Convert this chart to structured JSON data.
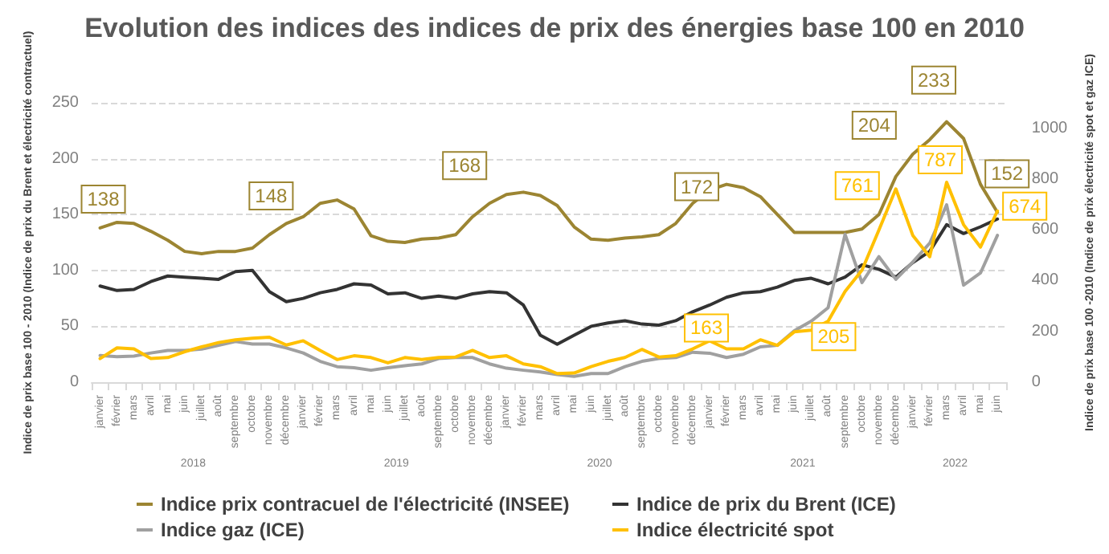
{
  "chart_data": {
    "type": "line",
    "title": "Evolution des indices des indices de prix des énergies base 100 en 2010",
    "ylabel": "Indice de prix base 100 - 2010 (Indice de prix du Brent et électricité contractuel)",
    "y2label": "Indice de prix base 100 -2010 (Indice de prix électricité spot et gaz ICE)",
    "categories": [
      "janvier",
      "février",
      "mars",
      "avril",
      "mai",
      "juin",
      "juillet",
      "août",
      "septembre",
      "octobre",
      "novembre",
      "décembre",
      "janvier",
      "février",
      "mars",
      "avril",
      "mai",
      "juin",
      "juillet",
      "août",
      "septembre",
      "octobre",
      "novembre",
      "décembre",
      "janvier",
      "février",
      "mars",
      "avril",
      "mai",
      "juin",
      "juillet",
      "août",
      "septembre",
      "octobre",
      "novembre",
      "décembre",
      "janvier",
      "février",
      "mars",
      "avril",
      "mai",
      "juin",
      "juillet",
      "août",
      "septembre",
      "octobre",
      "novembre",
      "décembre",
      "janvier",
      "février",
      "mars",
      "avril",
      "mai",
      "juin"
    ],
    "annotations": [
      "2018",
      "2019",
      "2020",
      "2021",
      "2022"
    ],
    "series": [
      {
        "name": "Indice prix contracuel de l'électricité (INSEE)",
        "color": "#9c8532",
        "values": [
          138,
          143,
          142,
          135,
          127,
          117,
          115,
          117,
          117,
          120,
          132,
          142,
          148,
          160,
          163,
          155,
          131,
          126,
          125,
          128,
          129,
          132,
          148,
          160,
          168,
          170,
          167,
          158,
          139,
          128,
          127,
          129,
          130,
          132,
          142,
          160,
          172,
          177,
          174,
          166,
          150,
          134,
          134,
          134,
          134,
          137,
          150,
          184,
          204,
          217,
          233,
          218,
          177,
          152
        ],
        "value_labels": [
          "138",
          null,
          null,
          null,
          null,
          null,
          null,
          null,
          null,
          null,
          null,
          null,
          "148",
          null,
          null,
          null,
          null,
          null,
          null,
          null,
          null,
          null,
          null,
          null,
          "168",
          null,
          null,
          null,
          null,
          null,
          null,
          null,
          null,
          null,
          null,
          null,
          "172",
          null,
          null,
          null,
          null,
          null,
          null,
          null,
          null,
          null,
          null,
          null,
          "204",
          null,
          "233",
          null,
          null,
          "152"
        ]
      },
      {
        "name": "Indice de prix du Brent (ICE)",
        "color": "#333333",
        "values": [
          86,
          82,
          83,
          90,
          95,
          94,
          93,
          92,
          99,
          100,
          81,
          72,
          75,
          80,
          83,
          88,
          87,
          79,
          80,
          75,
          77,
          75,
          79,
          81,
          80,
          69,
          42,
          34,
          42,
          50,
          53,
          55,
          52,
          51,
          55,
          63,
          69,
          76,
          80,
          81,
          85,
          91,
          93,
          88,
          94,
          105,
          101,
          94,
          107,
          117,
          141,
          133,
          139,
          146
        ]
      },
      {
        "name": "Indice gaz (ICE)",
        "color": "#a0a0a0",
        "axis": "y2",
        "values": [
          105,
          100,
          103,
          115,
          125,
          125,
          130,
          145,
          160,
          150,
          150,
          135,
          115,
          82,
          61,
          57,
          47,
          57,
          65,
          72,
          93,
          97,
          97,
          72,
          55,
          47,
          40,
          30,
          23,
          34,
          34,
          61,
          82,
          93,
          97,
          118,
          114,
          97,
          110,
          139,
          145,
          202,
          240,
          293,
          582,
          392,
          494,
          405,
          473,
          547,
          698,
          382,
          430,
          578
        ]
      },
      {
        "name": "Indice électricité spot",
        "color": "#ffc000",
        "axis": "y2",
        "values": [
          93,
          135,
          131,
          93,
          97,
          120,
          139,
          156,
          167,
          173,
          177,
          146,
          163,
          125,
          89,
          104,
          97,
          76,
          97,
          89,
          97,
          99,
          125,
          97,
          104,
          72,
          61,
          34,
          36,
          61,
          82,
          97,
          129,
          99,
          104,
          131,
          163,
          131,
          131,
          167,
          145,
          198,
          205,
          240,
          357,
          441,
          599,
          761,
          578,
          494,
          787,
          620,
          532,
          674
        ],
        "value_labels": [
          null,
          null,
          null,
          null,
          null,
          null,
          null,
          null,
          null,
          null,
          null,
          null,
          null,
          null,
          null,
          null,
          null,
          null,
          null,
          null,
          null,
          null,
          null,
          null,
          null,
          null,
          null,
          null,
          null,
          null,
          null,
          null,
          null,
          null,
          null,
          null,
          "163",
          null,
          null,
          null,
          null,
          null,
          "205",
          null,
          null,
          null,
          null,
          "761",
          null,
          null,
          "787",
          null,
          null,
          "674"
        ]
      }
    ],
    "ylim": [
      0,
      250
    ],
    "yticks": [
      0,
      50,
      100,
      150,
      200,
      250
    ],
    "y2lim": [
      0,
      1100
    ],
    "y2ticks": [
      0,
      200,
      400,
      600,
      800,
      1000
    ],
    "grid": "y",
    "legend": "bottom",
    "marker": "none",
    "line_style": "solid"
  }
}
